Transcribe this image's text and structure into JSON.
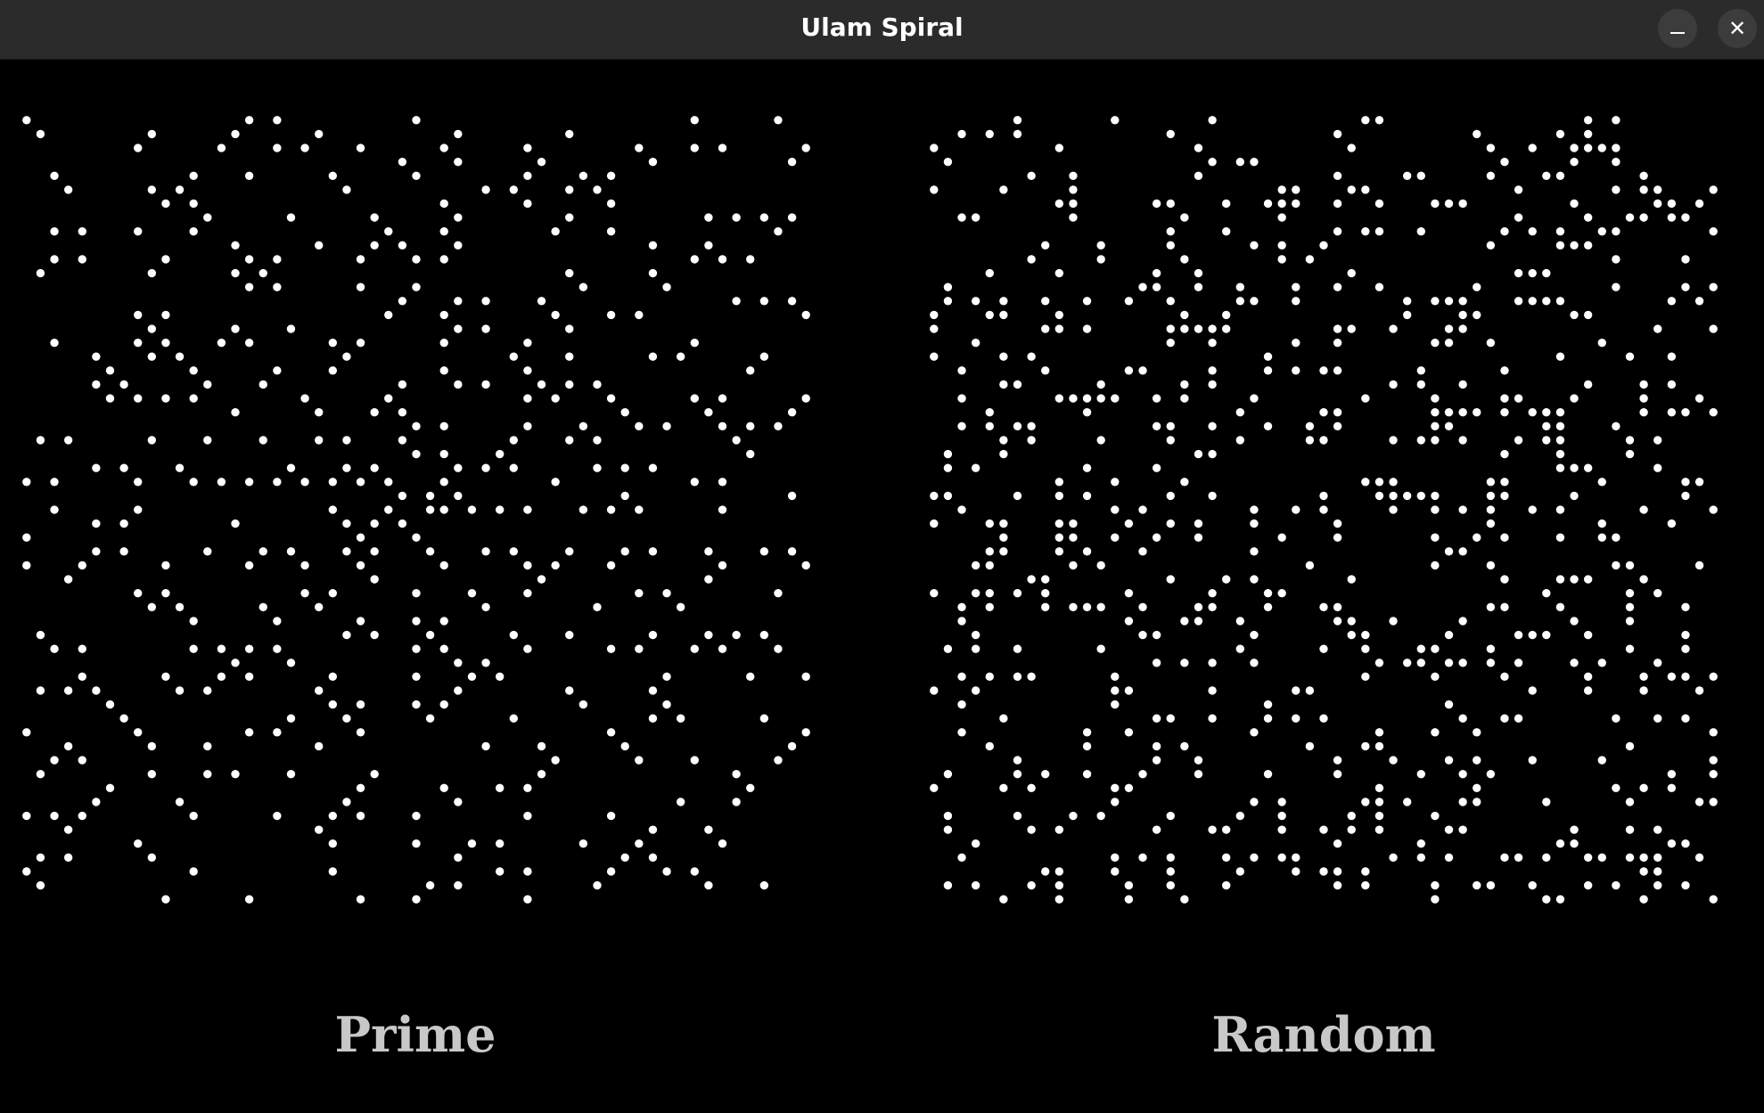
{
  "window": {
    "title": "Ulam Spiral",
    "minimize_icon": "minimize-icon",
    "close_icon": "close-icon",
    "close_glyph": "✕"
  },
  "panels": [
    {
      "label": "Prime",
      "mode": "prime",
      "dot_color": "#ffffff"
    },
    {
      "label": "Random",
      "mode": "random",
      "dot_color": "#ffffff"
    }
  ],
  "colors": {
    "background": "#000000",
    "titlebar": "#2b2b2b",
    "label": "#c8c8c8"
  },
  "chart_data": [
    {
      "type": "scatter",
      "title": "Prime",
      "grid_size": 57,
      "description_rule": "cells of a 57x57 Ulam spiral whose integer is prime"
    },
    {
      "type": "scatter",
      "title": "Random",
      "grid_size": 57,
      "density": 0.2
    }
  ]
}
